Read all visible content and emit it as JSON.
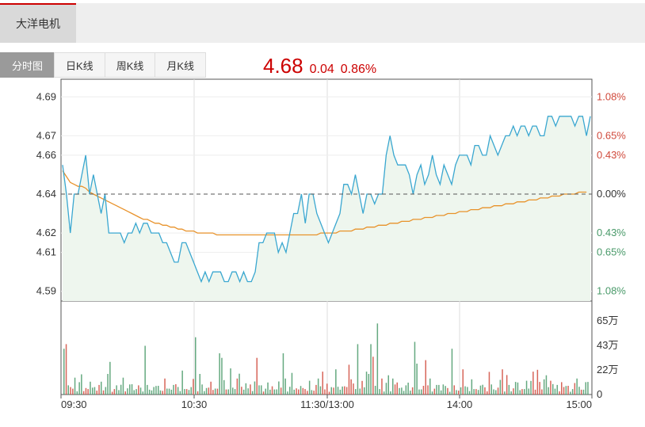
{
  "stock": {
    "name": "大洋电机"
  },
  "tabs": [
    {
      "label": "分时图",
      "active": true
    },
    {
      "label": "日K线",
      "active": false
    },
    {
      "label": "周K线",
      "active": false
    },
    {
      "label": "月K线",
      "active": false
    }
  ],
  "quote": {
    "price": "4.68",
    "change": "0.04",
    "change_pct": "0.86%",
    "color": "#cc0000"
  },
  "colors": {
    "price_line": "#3aa7d0",
    "avg_line": "#e8922a",
    "up": "#d04a3c",
    "down": "#4a9a6a",
    "fill": "#eef6ee"
  },
  "chart_data": {
    "type": "line",
    "prev_close": 4.64,
    "price_ticks": [
      "4.69",
      "4.67",
      "4.66",
      "4.64",
      "4.62",
      "4.61",
      "4.59"
    ],
    "pct_ticks": [
      "1.08%",
      "0.65%",
      "0.43%",
      "0.00%",
      "0.43%",
      "0.65%",
      "1.08%"
    ],
    "volume_ticks": [
      "65万",
      "43万",
      "22万",
      "0"
    ],
    "time_ticks": [
      "09:30",
      "10:30",
      "11:30/13:00",
      "14:00",
      "15:00"
    ],
    "series": [
      {
        "name": "price",
        "values": [
          4.655,
          4.64,
          4.62,
          4.64,
          4.64,
          4.65,
          4.66,
          4.64,
          4.65,
          4.64,
          4.63,
          4.64,
          4.62,
          4.62,
          4.62,
          4.62,
          4.615,
          4.62,
          4.62,
          4.625,
          4.62,
          4.625,
          4.625,
          4.62,
          4.62,
          4.62,
          4.615,
          4.615,
          4.61,
          4.605,
          4.605,
          4.615,
          4.615,
          4.61,
          4.605,
          4.6,
          4.595,
          4.6,
          4.595,
          4.6,
          4.6,
          4.6,
          4.595,
          4.595,
          4.6,
          4.6,
          4.595,
          4.6,
          4.595,
          4.595,
          4.6,
          4.615,
          4.615,
          4.62,
          4.62,
          4.62,
          4.61,
          4.615,
          4.61,
          4.62,
          4.63,
          4.63,
          4.64,
          4.625,
          4.64,
          4.64,
          4.63,
          4.625,
          4.62,
          4.615,
          4.62,
          4.625,
          4.63,
          4.645,
          4.645,
          4.64,
          4.65,
          4.64,
          4.63,
          4.64,
          4.64,
          4.635,
          4.64,
          4.64,
          4.66,
          4.67,
          4.66,
          4.655,
          4.655,
          4.655,
          4.65,
          4.64,
          4.65,
          4.655,
          4.645,
          4.65,
          4.66,
          4.65,
          4.645,
          4.655,
          4.65,
          4.645,
          4.655,
          4.66,
          4.66,
          4.66,
          4.655,
          4.665,
          4.665,
          4.66,
          4.66,
          4.67,
          4.665,
          4.66,
          4.665,
          4.67,
          4.67,
          4.675,
          4.67,
          4.675,
          4.675,
          4.67,
          4.675,
          4.675,
          4.67,
          4.67,
          4.68,
          4.68,
          4.675,
          4.68,
          4.68,
          4.68,
          4.68,
          4.675,
          4.68,
          4.68,
          4.67,
          4.68
        ]
      },
      {
        "name": "average",
        "values": [
          4.652,
          4.649,
          4.646,
          4.645,
          4.644,
          4.644,
          4.643,
          4.641,
          4.64,
          4.639,
          4.638,
          4.637,
          4.636,
          4.635,
          4.634,
          4.633,
          4.632,
          4.631,
          4.63,
          4.629,
          4.628,
          4.627,
          4.627,
          4.626,
          4.625,
          4.625,
          4.624,
          4.624,
          4.623,
          4.623,
          4.622,
          4.622,
          4.621,
          4.621,
          4.621,
          4.62,
          4.62,
          4.62,
          4.62,
          4.62,
          4.619,
          4.619,
          4.619,
          4.619,
          4.619,
          4.619,
          4.619,
          4.619,
          4.619,
          4.619,
          4.619,
          4.619,
          4.619,
          4.619,
          4.619,
          4.619,
          4.619,
          4.619,
          4.619,
          4.619,
          4.619,
          4.619,
          4.619,
          4.619,
          4.619,
          4.619,
          4.619,
          4.62,
          4.62,
          4.62,
          4.62,
          4.62,
          4.621,
          4.621,
          4.621,
          4.621,
          4.622,
          4.622,
          4.622,
          4.623,
          4.623,
          4.623,
          4.624,
          4.624,
          4.624,
          4.625,
          4.625,
          4.625,
          4.626,
          4.626,
          4.626,
          4.627,
          4.627,
          4.627,
          4.628,
          4.628,
          4.628,
          4.629,
          4.629,
          4.629,
          4.63,
          4.63,
          4.63,
          4.631,
          4.631,
          4.631,
          4.632,
          4.632,
          4.632,
          4.633,
          4.633,
          4.633,
          4.634,
          4.634,
          4.634,
          4.635,
          4.635,
          4.635,
          4.636,
          4.636,
          4.636,
          4.637,
          4.637,
          4.637,
          4.638,
          4.638,
          4.638,
          4.639,
          4.639,
          4.639,
          4.64,
          4.64,
          4.64,
          4.64,
          4.641,
          4.641,
          4.641
        ]
      }
    ],
    "volume": {
      "ymax": 65,
      "values": [
        40,
        44,
        8,
        10,
        6,
        14,
        4,
        12,
        16,
        4,
        6,
        8,
        14,
        6,
        10,
        4,
        8,
        16,
        4,
        6,
        24,
        30,
        4,
        6,
        8,
        6,
        10,
        14,
        4,
        6,
        8,
        12,
        4,
        8,
        10,
        6,
        4,
        50,
        8,
        6,
        4,
        6,
        10,
        8,
        6,
        4,
        14,
        8,
        6,
        4,
        12,
        10,
        6,
        4,
        22,
        8,
        6,
        4,
        10,
        16,
        6,
        4,
        20,
        8,
        4,
        6,
        10,
        14,
        4,
        8,
        6,
        12,
        8,
        14,
        4,
        6,
        24,
        10,
        6,
        14,
        28,
        8,
        4,
        14,
        6,
        8,
        4,
        12,
        6,
        10,
        8,
        4,
        6,
        10,
        6,
        8,
        4,
        6,
        12,
        10,
        6,
        14,
        4,
        8,
        18,
        6,
        6,
        4,
        10,
        6,
        8,
        4,
        12,
        6,
        4,
        8,
        20,
        8,
        14,
        6,
        10,
        4,
        8,
        6,
        10,
        8,
        4,
        10,
        8,
        6,
        10,
        14,
        16,
        6,
        4,
        8,
        14,
        6,
        10,
        20
      ],
      "extra_spikes": [
        {
          "i": 100,
          "v": 36
        },
        {
          "i": 88,
          "v": 32
        },
        {
          "i": 118,
          "v": 20
        },
        {
          "i": 124,
          "v": 22
        },
        {
          "i": 130,
          "v": 26
        },
        {
          "i": 134,
          "v": 44
        },
        {
          "i": 138,
          "v": 20
        },
        {
          "i": 143,
          "v": 62
        },
        {
          "i": 150,
          "v": 14
        },
        {
          "i": 160,
          "v": 46
        },
        {
          "i": 165,
          "v": 30
        },
        {
          "i": 182,
          "v": 22
        },
        {
          "i": 200,
          "v": 22
        },
        {
          "i": 214,
          "v": 20
        },
        {
          "i": 222,
          "v": 12
        },
        {
          "i": 234,
          "v": 14
        }
      ]
    }
  }
}
